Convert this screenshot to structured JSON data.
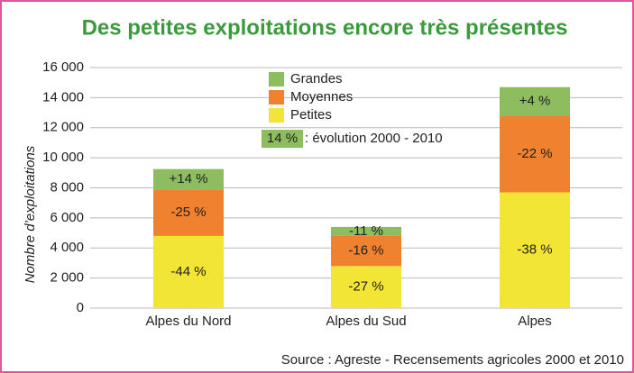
{
  "chart_data": {
    "type": "stacked_bar",
    "title": "Des petites exploitations encore très présentes",
    "y_label": "Nombre d’exploitations",
    "source": "Source : Agreste - Recensements agricoles 2000 et 2010",
    "categories": [
      "Alpes du Nord",
      "Alpes du Sud",
      "Alpes"
    ],
    "series": [
      {
        "name": "Petites",
        "color": "#f3e535",
        "values": [
          4800,
          2800,
          7700
        ],
        "evolution": [
          "-44 %",
          "-27 %",
          "-38 %"
        ]
      },
      {
        "name": "Moyennes",
        "color": "#f0812e",
        "values": [
          3100,
          2000,
          5100
        ],
        "evolution": [
          "-25 %",
          "-16 %",
          "-22 %"
        ]
      },
      {
        "name": "Grandes",
        "color": "#8dbd5f",
        "values": [
          1350,
          600,
          1900
        ],
        "evolution": [
          "+14 %",
          "-11 %",
          "+4 %"
        ]
      }
    ],
    "legend_note": {
      "sample": "14 %",
      "text": ": évolution 2000 - 2010"
    },
    "ylim": [
      0,
      16000
    ],
    "yticks": [
      0,
      {
        "value": 2000,
        "label": "2 000"
      },
      {
        "value": 4000,
        "label": "4 000"
      },
      {
        "value": 6000,
        "label": "6 000"
      },
      {
        "value": 8000,
        "label": "8 000"
      },
      {
        "value": 10000,
        "label": "10 000"
      },
      {
        "value": 12000,
        "label": "12 000"
      },
      {
        "value": 14000,
        "label": "14 000"
      },
      {
        "value": 16000,
        "label": "16 000"
      }
    ],
    "grid": true
  }
}
